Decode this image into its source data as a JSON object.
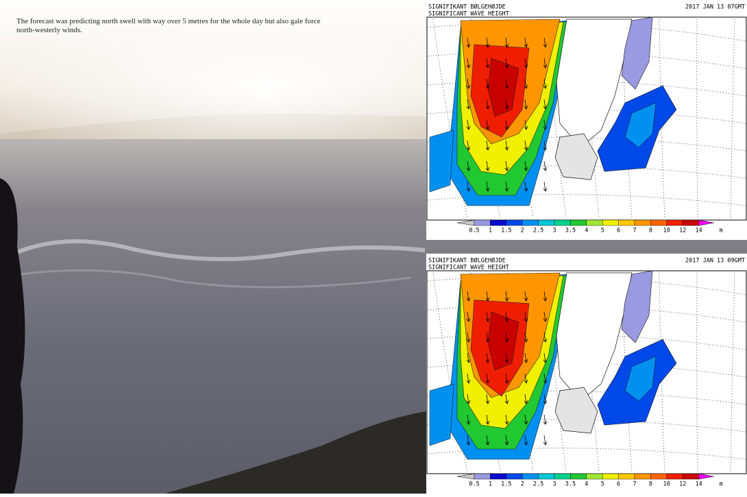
{
  "caption": "The forecast was predicting north swell with way over 5 metres for the whole day but also gale force north-westerly winds.",
  "maps": [
    {
      "title_no": "SIGNIFIKANT BØLGEHØJDE",
      "title_en": "SIGNIFICANT WAVE HEIGHT",
      "timestamp": "2017 JAN 13 07GMT",
      "legend": {
        "labels": [
          "0.5",
          "1",
          "1.5",
          "2",
          "2.5",
          "3",
          "3.5",
          "4",
          "5",
          "6",
          "7",
          "8",
          "10",
          "12",
          "14"
        ],
        "unit": "m"
      }
    },
    {
      "title_no": "SIGNIFIKANT BØLGEHØJDE",
      "title_en": "SIGNIFICANT WAVE HEIGHT",
      "timestamp": "2017 JAN 13 09GMT",
      "legend": {
        "labels": [
          "0.5",
          "1",
          "1.5",
          "2",
          "2.5",
          "3",
          "3.5",
          "4",
          "5",
          "6",
          "7",
          "8",
          "10",
          "12",
          "14"
        ],
        "unit": "m"
      }
    }
  ]
}
